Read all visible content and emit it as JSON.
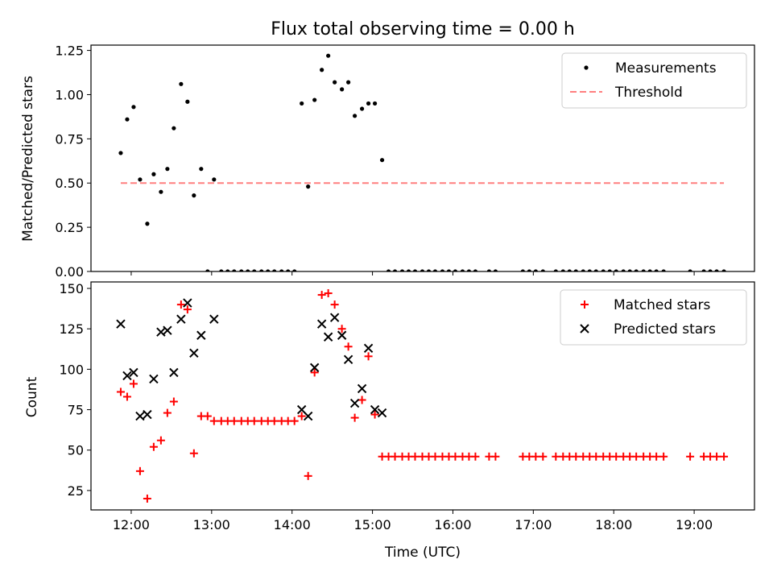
{
  "chart_data": [
    {
      "type": "scatter",
      "title": "Flux total observing time = 0.00 h",
      "xlabel": "",
      "ylabel": "Matched/Predicted stars",
      "ylim": [
        0,
        1.28
      ],
      "xlim": [
        11.5,
        19.75
      ],
      "yticks": [
        0,
        0.25,
        0.5,
        0.75,
        1.0,
        1.25
      ],
      "ytick_labels": [
        "0.00",
        "0.25",
        "0.50",
        "0.75",
        "1.00",
        "1.25"
      ],
      "xticks": [
        12,
        13,
        14,
        15,
        16,
        17,
        18,
        19
      ],
      "legend_position": "upper-right",
      "series": [
        {
          "name": "Measurements",
          "marker": "dot",
          "color": "#000000",
          "x": [
            11.87,
            11.95,
            12.03,
            12.11,
            12.2,
            12.28,
            12.37,
            12.45,
            12.53,
            12.62,
            12.7,
            12.78,
            12.87,
            12.95,
            13.03,
            13.12,
            13.2,
            13.28,
            13.37,
            13.45,
            13.53,
            13.62,
            13.7,
            13.78,
            13.87,
            13.95,
            14.03,
            14.12,
            14.2,
            14.28,
            14.37,
            14.45,
            14.53,
            14.62,
            14.7,
            14.78,
            14.87,
            14.95,
            15.03,
            15.12,
            15.2,
            15.28,
            15.37,
            15.45,
            15.53,
            15.62,
            15.7,
            15.78,
            15.87,
            15.95,
            16.03,
            16.12,
            16.2,
            16.28,
            16.45,
            16.53,
            16.87,
            16.95,
            17.03,
            17.12,
            17.28,
            17.37,
            17.45,
            17.53,
            17.62,
            17.7,
            17.78,
            17.87,
            17.95,
            18.03,
            18.12,
            18.2,
            18.28,
            18.37,
            18.45,
            18.53,
            18.62,
            18.95,
            19.12,
            19.2,
            19.28,
            19.37
          ],
          "y": [
            0.67,
            0.86,
            0.93,
            0.52,
            0.27,
            0.55,
            0.45,
            0.58,
            0.81,
            1.06,
            0.96,
            0.43,
            0.58,
            0,
            0.52,
            0,
            0,
            0,
            0,
            0,
            0,
            0,
            0,
            0,
            0,
            0,
            0,
            0.95,
            0.48,
            0.97,
            1.14,
            1.22,
            1.07,
            1.03,
            1.07,
            0.88,
            0.92,
            0.95,
            0.95,
            0.63,
            0,
            0,
            0,
            0,
            0,
            0,
            0,
            0,
            0,
            0,
            0,
            0,
            0,
            0,
            0,
            0,
            0,
            0,
            0,
            0,
            0,
            0,
            0,
            0,
            0,
            0,
            0,
            0,
            0,
            0,
            0,
            0,
            0,
            0,
            0,
            0,
            0,
            0,
            0,
            0,
            0,
            0
          ]
        },
        {
          "name": "Threshold",
          "marker": "dashed-line",
          "color": "#ff7f7f",
          "x": [
            11.87,
            19.37
          ],
          "y": [
            0.5,
            0.5
          ]
        }
      ]
    },
    {
      "type": "scatter",
      "title": "",
      "xlabel": "Time (UTC)",
      "ylabel": "Count",
      "ylim": [
        13,
        154
      ],
      "xlim": [
        11.5,
        19.75
      ],
      "yticks": [
        25,
        50,
        75,
        100,
        125,
        150
      ],
      "ytick_labels": [
        "25",
        "50",
        "75",
        "100",
        "125",
        "150"
      ],
      "xticks": [
        12,
        13,
        14,
        15,
        16,
        17,
        18,
        19
      ],
      "xtick_labels": [
        "12:00",
        "13:00",
        "14:00",
        "15:00",
        "16:00",
        "17:00",
        "18:00",
        "19:00"
      ],
      "legend_position": "upper-right",
      "series": [
        {
          "name": "Matched stars",
          "marker": "plus",
          "color": "#ff0000",
          "x": [
            11.87,
            11.95,
            12.03,
            12.11,
            12.2,
            12.28,
            12.37,
            12.45,
            12.53,
            12.62,
            12.7,
            12.78,
            12.87,
            12.95,
            13.03,
            13.12,
            13.2,
            13.28,
            13.37,
            13.45,
            13.53,
            13.62,
            13.7,
            13.78,
            13.87,
            13.95,
            14.03,
            14.12,
            14.2,
            14.28,
            14.37,
            14.45,
            14.53,
            14.62,
            14.7,
            14.78,
            14.87,
            14.95,
            15.03,
            15.12,
            15.2,
            15.28,
            15.37,
            15.45,
            15.53,
            15.62,
            15.7,
            15.78,
            15.87,
            15.95,
            16.03,
            16.12,
            16.2,
            16.28,
            16.45,
            16.53,
            16.87,
            16.95,
            17.03,
            17.12,
            17.28,
            17.37,
            17.45,
            17.53,
            17.62,
            17.7,
            17.78,
            17.87,
            17.95,
            18.03,
            18.12,
            18.2,
            18.28,
            18.37,
            18.45,
            18.53,
            18.62,
            18.95,
            19.12,
            19.2,
            19.28,
            19.37
          ],
          "y": [
            86,
            83,
            91,
            37,
            20,
            52,
            56,
            73,
            80,
            140,
            137,
            48,
            71,
            71,
            68,
            68,
            68,
            68,
            68,
            68,
            68,
            68,
            68,
            68,
            68,
            68,
            68,
            71,
            34,
            98,
            146,
            147,
            140,
            125,
            114,
            70,
            81,
            108,
            72,
            46,
            46,
            46,
            46,
            46,
            46,
            46,
            46,
            46,
            46,
            46,
            46,
            46,
            46,
            46,
            46,
            46,
            46,
            46,
            46,
            46,
            46,
            46,
            46,
            46,
            46,
            46,
            46,
            46,
            46,
            46,
            46,
            46,
            46,
            46,
            46,
            46,
            46,
            46,
            46,
            46,
            46,
            46
          ]
        },
        {
          "name": "Predicted stars",
          "marker": "x",
          "color": "#000000",
          "x": [
            11.87,
            11.95,
            12.03,
            12.11,
            12.2,
            12.28,
            12.37,
            12.45,
            12.53,
            12.62,
            12.7,
            12.78,
            12.87,
            13.03,
            14.12,
            14.2,
            14.28,
            14.37,
            14.45,
            14.53,
            14.62,
            14.7,
            14.78,
            14.87,
            14.95,
            15.03,
            15.12
          ],
          "y": [
            128,
            96,
            98,
            71,
            72,
            94,
            123,
            124,
            98,
            131,
            141,
            110,
            121,
            131,
            75,
            71,
            101,
            128,
            120,
            132,
            121,
            106,
            79,
            88,
            113,
            75,
            73
          ]
        }
      ]
    }
  ]
}
